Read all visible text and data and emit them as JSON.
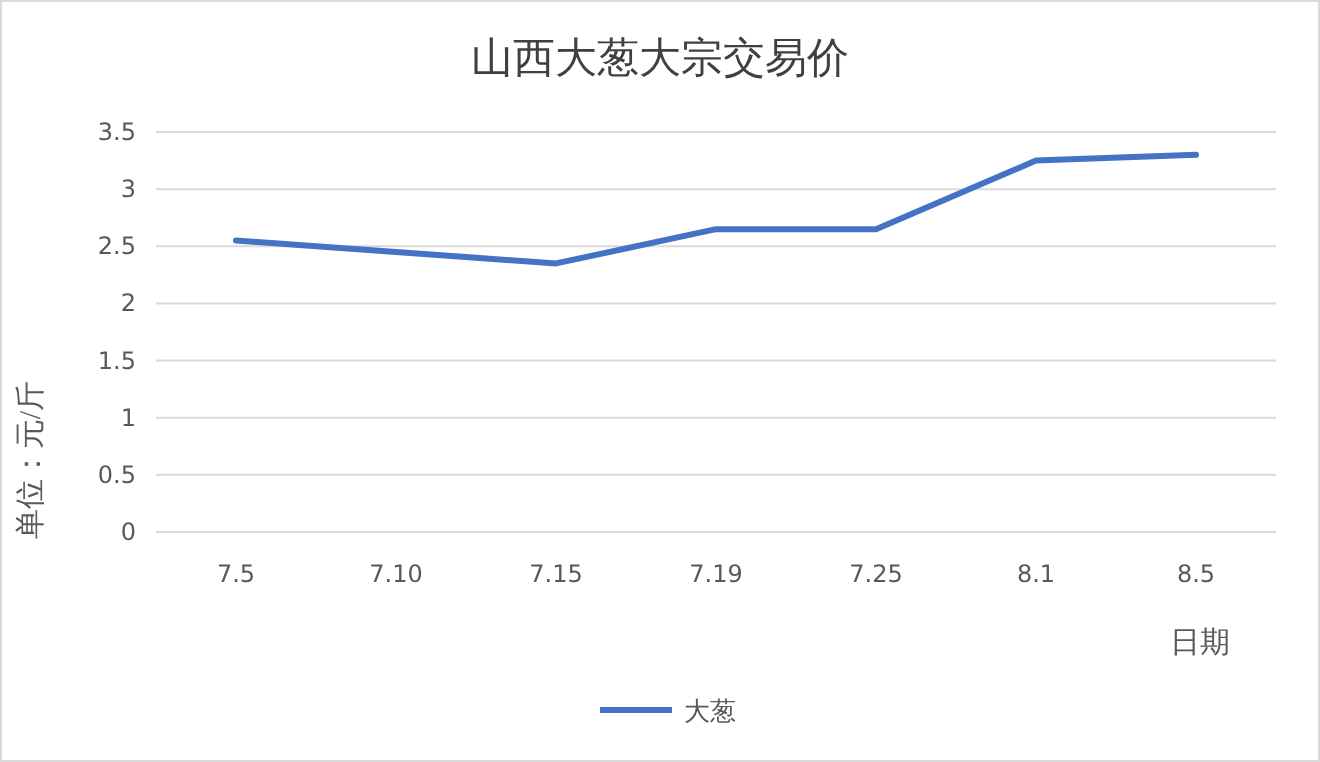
{
  "chart_data": {
    "type": "line",
    "title": "山西大葱大宗交易价",
    "xlabel": "日期",
    "ylabel": "单位：元/斤",
    "categories": [
      "7.5",
      "7.10",
      "7.15",
      "7.19",
      "7.25",
      "8.1",
      "8.5"
    ],
    "series": [
      {
        "name": "大葱",
        "color": "#4472c4",
        "values": [
          2.55,
          2.45,
          2.35,
          2.65,
          2.65,
          3.25,
          3.3
        ]
      }
    ],
    "ylim": [
      0,
      3.5
    ],
    "yticks": [
      0,
      0.5,
      1,
      1.5,
      2,
      2.5,
      3,
      3.5
    ],
    "grid": "y",
    "legend": "bottom",
    "marker": "none",
    "line_style": "solid"
  }
}
